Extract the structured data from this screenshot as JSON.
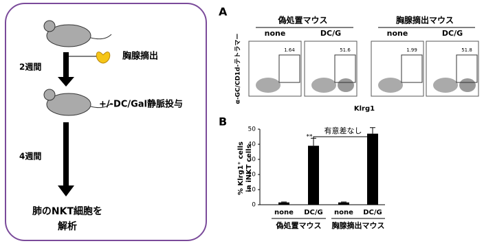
{
  "diagram": {
    "steps": [
      "2週間",
      "4週間"
    ],
    "thymectomy": "胸腺摘出",
    "injection": "+/-DC/Gal静脈投与",
    "analysis": [
      "肺のNKT細胞を",
      "解析"
    ]
  },
  "panel_a": {
    "label": "A",
    "ylabel": "α-GC/CD1d-テトラマー",
    "xlabel": "Klrg1",
    "groups": [
      {
        "title": "偽処置マウス",
        "conditions": [
          {
            "name": "none",
            "value": 1.64
          },
          {
            "name": "DC/G",
            "value": 51.6
          }
        ]
      },
      {
        "title": "胸腺摘出マウス",
        "conditions": [
          {
            "name": "none",
            "value": 1.99
          },
          {
            "name": "DC/G",
            "value": 51.8
          }
        ]
      }
    ]
  },
  "chart_data": {
    "type": "bar",
    "panel_label": "B",
    "categories": [
      "none",
      "DC/G",
      "none",
      "DC/G"
    ],
    "groups": [
      "偽処置マウス",
      "胸腺摘出マウス"
    ],
    "values": [
      1.5,
      39,
      1.5,
      47
    ],
    "errors": [
      0.3,
      5,
      0.3,
      4
    ],
    "color": "#000000",
    "ylabel": [
      "% Klrg1⁺ cells",
      "in iNKT cells"
    ],
    "ylim": [
      0,
      50
    ],
    "yticks": [
      0,
      10,
      20,
      30,
      40,
      50
    ],
    "significance": "**",
    "bracket": "有意差なし"
  }
}
